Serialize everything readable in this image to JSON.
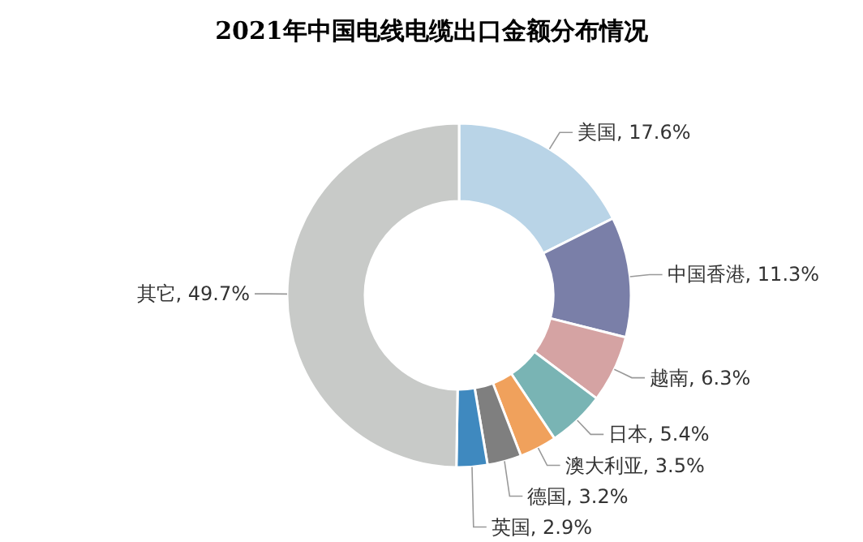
{
  "chart_data": {
    "type": "donut",
    "title": "2021年中国电线电缆出口金额分布情况",
    "categories": [
      "美国",
      "中国香港",
      "越南",
      "日本",
      "澳大利亚",
      "德国",
      "英国",
      "其它"
    ],
    "values": [
      17.6,
      11.3,
      6.3,
      5.4,
      3.5,
      3.2,
      2.9,
      49.7
    ],
    "colors": [
      "#b9d4e7",
      "#7a7fa8",
      "#d5a3a3",
      "#79b4b4",
      "#f0a15c",
      "#7f7f7f",
      "#3f89bf",
      "#c8cac8"
    ],
    "value_labels": [
      "17.6%",
      "11.3%",
      "6.3%",
      "5.4%",
      "3.5%",
      "3.2%",
      "2.9%",
      "49.7%"
    ],
    "legend": false
  }
}
